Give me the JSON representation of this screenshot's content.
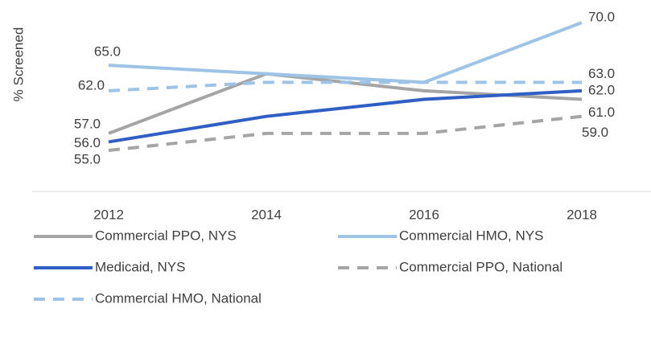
{
  "chart_data": {
    "type": "line",
    "y_label": "% Screened",
    "categories": [
      "2012",
      "2014",
      "2016",
      "2018"
    ],
    "ylim": [
      50,
      72
    ],
    "legend": "bottom",
    "series": [
      {
        "name": "Commercial PPO, NYS",
        "color": "#a5a5a5",
        "dashed": false,
        "values": [
          57,
          64,
          62,
          61
        ],
        "value_labels": [
          "57.0",
          null,
          null,
          "61.0"
        ]
      },
      {
        "name": "Commercial HMO, NYS",
        "color": "#9dc3e6",
        "dashed": false,
        "values": [
          65,
          64,
          63,
          70
        ],
        "value_labels": [
          "65.0",
          null,
          null,
          "70.0"
        ]
      },
      {
        "name": "Medicaid, NYS",
        "color": "#2f5fc4",
        "dashed": false,
        "values": [
          56,
          59,
          61,
          62
        ],
        "value_labels": [
          "56.0",
          null,
          null,
          "62.0"
        ]
      },
      {
        "name": "Commercial PPO, National",
        "color": "#a5a5a5",
        "dashed": true,
        "values": [
          55,
          57,
          57,
          59
        ],
        "value_labels": [
          "55.0",
          null,
          null,
          "59.0"
        ]
      },
      {
        "name": "Commercial HMO, National",
        "color": "#9dc3e6",
        "dashed": true,
        "values": [
          62,
          63,
          63,
          63
        ],
        "value_labels": [
          "62.0",
          null,
          null,
          "63.0"
        ]
      }
    ]
  }
}
